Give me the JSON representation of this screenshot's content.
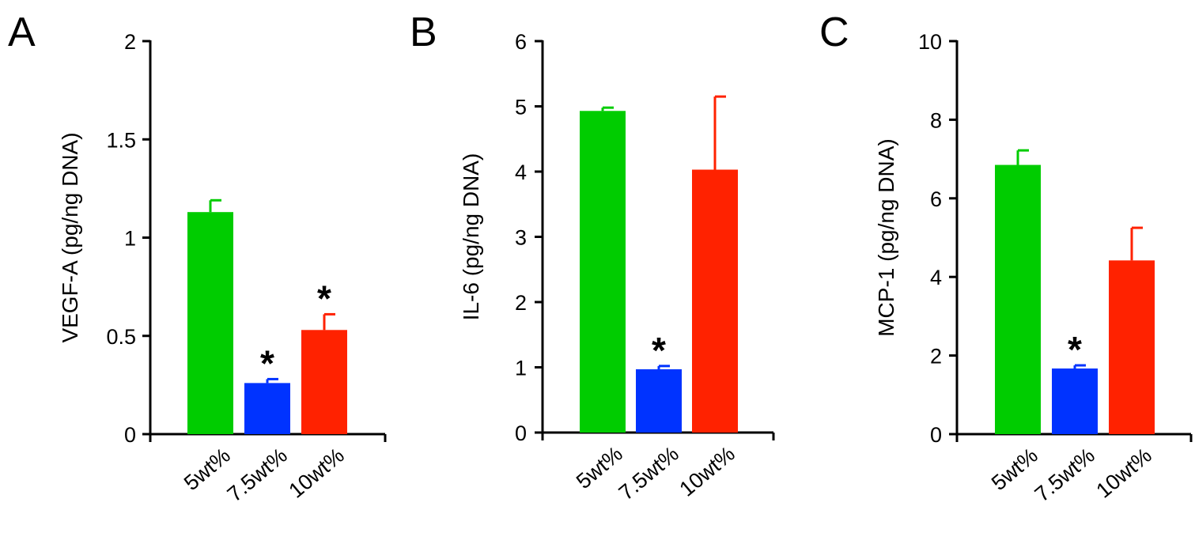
{
  "chart_data": [
    {
      "type": "bar",
      "panel_label": "A",
      "ylabel": "VEGF-A (pg/ng DNA)",
      "ylim": [
        0,
        2
      ],
      "yticks": [
        "0",
        "0.5",
        "1",
        "1.5",
        "2"
      ],
      "categories": [
        "5wt%",
        "7.5wt%",
        "10wt%"
      ],
      "values": [
        1.13,
        0.26,
        0.53
      ],
      "errors": [
        0.06,
        0.02,
        0.08
      ],
      "significance": [
        "",
        "*",
        "*"
      ],
      "colors": [
        "#00cc00",
        "#0033ff",
        "#ff2200"
      ]
    },
    {
      "type": "bar",
      "panel_label": "B",
      "ylabel": "IL-6 (pg/ng DNA)",
      "ylim": [
        0,
        6
      ],
      "yticks": [
        "0",
        "1",
        "2",
        "3",
        "4",
        "5",
        "6"
      ],
      "categories": [
        "5wt%",
        "7.5wt%",
        "10wt%"
      ],
      "values": [
        4.93,
        0.97,
        4.03
      ],
      "errors": [
        0.05,
        0.05,
        1.12
      ],
      "significance": [
        "",
        "*",
        ""
      ],
      "colors": [
        "#00cc00",
        "#0033ff",
        "#ff2200"
      ]
    },
    {
      "type": "bar",
      "panel_label": "C",
      "ylabel": "MCP-1 (pg/ng DNA)",
      "ylim": [
        0,
        10
      ],
      "yticks": [
        "0",
        "2",
        "4",
        "6",
        "8",
        "10"
      ],
      "categories": [
        "5wt%",
        "7.5wt%",
        "10wt%"
      ],
      "values": [
        6.85,
        1.67,
        4.42
      ],
      "errors": [
        0.37,
        0.08,
        0.83
      ],
      "significance": [
        "",
        "*",
        ""
      ],
      "colors": [
        "#00cc00",
        "#0033ff",
        "#ff2200"
      ]
    }
  ]
}
